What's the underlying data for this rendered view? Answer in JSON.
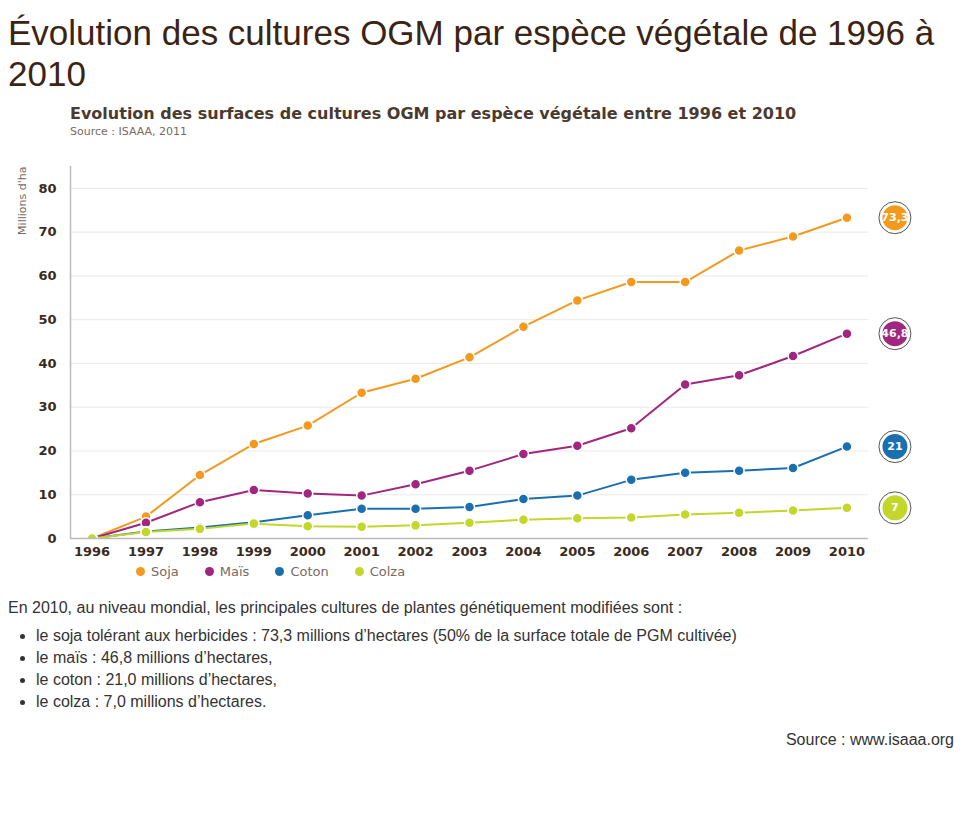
{
  "page": {
    "heading": "Évolution des cultures OGM par espèce végétale de 1996 à 2010",
    "intro": "En 2010, au niveau mondial, les principales cultures de plantes génétiquement modifiées sont :",
    "bullets": [
      "le soja tolérant aux herbicides : 73,3 millions d’hectares (50% de la surface totale de PGM cultivée)",
      "le maïs : 46,8 millions d’hectares,",
      "le coton : 21,0 millions d’hectares,",
      "le colza : 7,0 millions d’hectares."
    ],
    "source": "Source : www.isaaa.org"
  },
  "chart_data": {
    "type": "line",
    "title": "Evolution des surfaces de cultures OGM par espèce végétale entre 1996 et 2010",
    "subtitle": "Source : ISAAA, 2011",
    "y_label": "Millions d'ha",
    "x": [
      1996,
      1997,
      1998,
      1999,
      2000,
      2001,
      2002,
      2003,
      2004,
      2005,
      2006,
      2007,
      2008,
      2009,
      2010
    ],
    "series": [
      {
        "name": "Soja",
        "color": "#f39a1e",
        "values": [
          0,
          5,
          14.5,
          21.6,
          25.8,
          33.3,
          36.5,
          41.4,
          48.4,
          54.4,
          58.6,
          58.6,
          65.8,
          69,
          73.3
        ],
        "value_labels": [
          null,
          null,
          null,
          null,
          null,
          null,
          null,
          null,
          null,
          null,
          null,
          null,
          null,
          null,
          "73,3"
        ]
      },
      {
        "name": "Maïs",
        "color": "#a0267f",
        "values": [
          0,
          3.6,
          8.3,
          11.1,
          10.3,
          9.8,
          12.4,
          15.5,
          19.3,
          21.2,
          25.2,
          35.2,
          37.3,
          41.7,
          46.8
        ],
        "value_labels": [
          null,
          null,
          null,
          null,
          null,
          null,
          null,
          null,
          null,
          null,
          null,
          null,
          null,
          null,
          "46,8"
        ]
      },
      {
        "name": "Coton",
        "color": "#1a6fb0",
        "values": [
          0,
          1.6,
          2.5,
          3.7,
          5.3,
          6.8,
          6.8,
          7.2,
          9,
          9.8,
          13.4,
          15,
          15.5,
          16.1,
          21
        ],
        "value_labels": [
          null,
          null,
          null,
          null,
          null,
          null,
          null,
          null,
          null,
          null,
          null,
          null,
          null,
          null,
          "21"
        ]
      },
      {
        "name": "Colza",
        "color": "#c3d62a",
        "values": [
          0,
          1.5,
          2.2,
          3.4,
          2.8,
          2.7,
          3,
          3.6,
          4.3,
          4.6,
          4.8,
          5.5,
          5.9,
          6.4,
          7
        ],
        "value_labels": [
          null,
          null,
          null,
          null,
          null,
          null,
          null,
          null,
          null,
          null,
          null,
          null,
          null,
          null,
          "7"
        ]
      }
    ],
    "xlim": [
      1995.6,
      2010.4
    ],
    "xticks": [
      1996,
      1997,
      1998,
      1999,
      2000,
      2001,
      2002,
      2003,
      2004,
      2005,
      2006,
      2007,
      2008,
      2009,
      2010
    ],
    "ylim": [
      0,
      85
    ],
    "yticks": [
      0,
      10,
      20,
      30,
      40,
      50,
      60,
      70,
      80
    ],
    "grid": true,
    "legend": "bottom",
    "data_labels": true,
    "marker": "circle",
    "line_style": "solid"
  }
}
